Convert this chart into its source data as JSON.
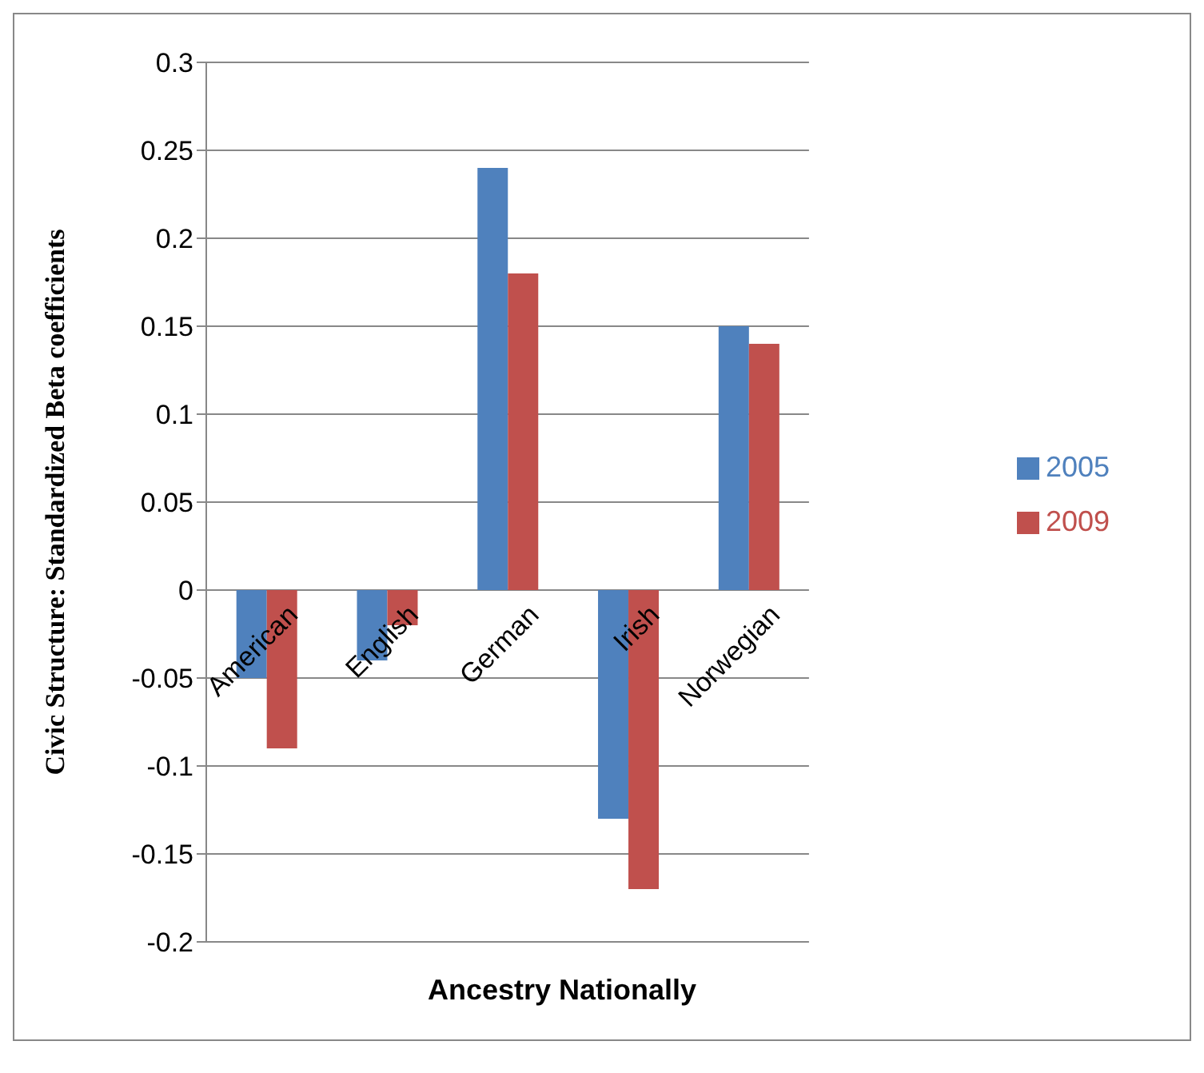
{
  "chart_data": {
    "type": "bar",
    "xlabel": "Ancestry Nationally",
    "ylabel": "Civic Structure: Standardized Beta coefficients",
    "categories": [
      "American",
      "English",
      "German",
      "Irish",
      "Norwegian"
    ],
    "series": [
      {
        "name": "2005",
        "color": "#4f81bd",
        "values": [
          -0.05,
          -0.04,
          0.24,
          -0.13,
          0.15
        ]
      },
      {
        "name": "2009",
        "color": "#c0504d",
        "values": [
          -0.09,
          -0.02,
          0.18,
          -0.17,
          0.14
        ]
      }
    ],
    "ylim": [
      -0.2,
      0.3
    ],
    "yticks": [
      -0.2,
      -0.15,
      -0.1,
      -0.05,
      0,
      0.05,
      0.1,
      0.15,
      0.2,
      0.25,
      0.3
    ],
    "grid": "y",
    "legend": "right"
  }
}
